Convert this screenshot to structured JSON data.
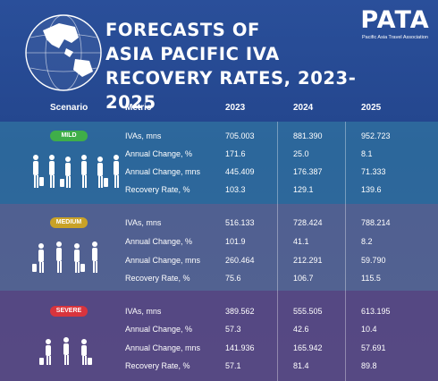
{
  "header": {
    "title_lines": [
      "FORECASTS OF",
      "ASIA PACIFIC IVA",
      "RECOVERY RATES, 2023-2025"
    ],
    "logo_text": "PATA",
    "logo_subtitle": "Pacific Asia Travel Association",
    "globe_icon": "globe-asia-pacific-icon"
  },
  "table": {
    "columns": [
      "Scenario",
      "Metric",
      "2023",
      "2024",
      "2025"
    ],
    "scenarios": [
      {
        "name": "MILD",
        "badge_color": "#3fae49",
        "rows": [
          {
            "metric": "IVAs, mns",
            "y2023": "705.003",
            "y2024": "881.390",
            "y2025": "952.723"
          },
          {
            "metric": "Annual Change, %",
            "y2023": "171.6",
            "y2024": "25.0",
            "y2025": "8.1"
          },
          {
            "metric": "Annual Change, mns",
            "y2023": "445.409",
            "y2024": "176.387",
            "y2025": "71.333"
          },
          {
            "metric": "Recovery Rate, %",
            "y2023": "103.3",
            "y2024": "129.1",
            "y2025": "139.6"
          }
        ]
      },
      {
        "name": "MEDIUM",
        "badge_color": "#c9a227",
        "rows": [
          {
            "metric": "IVAs, mns",
            "y2023": "516.133",
            "y2024": "728.424",
            "y2025": "788.214"
          },
          {
            "metric": "Annual Change, %",
            "y2023": "101.9",
            "y2024": "41.1",
            "y2025": "8.2"
          },
          {
            "metric": "Annual Change, mns",
            "y2023": "260.464",
            "y2024": "212.291",
            "y2025": "59.790"
          },
          {
            "metric": "Recovery Rate, %",
            "y2023": "75.6",
            "y2024": "106.7",
            "y2025": "115.5"
          }
        ]
      },
      {
        "name": "SEVERE",
        "badge_color": "#d8343d",
        "rows": [
          {
            "metric": "IVAs, mns",
            "y2023": "389.562",
            "y2024": "555.505",
            "y2025": "613.195"
          },
          {
            "metric": "Annual Change, %",
            "y2023": "57.3",
            "y2024": "42.6",
            "y2025": "10.4"
          },
          {
            "metric": "Annual Change, mns",
            "y2023": "141.936",
            "y2024": "165.942",
            "y2025": "57.691"
          },
          {
            "metric": "Recovery Rate, %",
            "y2023": "57.1",
            "y2024": "81.4",
            "y2025": "89.8"
          }
        ]
      }
    ]
  },
  "icons": {
    "traveler": "traveler-with-luggage-icon"
  }
}
